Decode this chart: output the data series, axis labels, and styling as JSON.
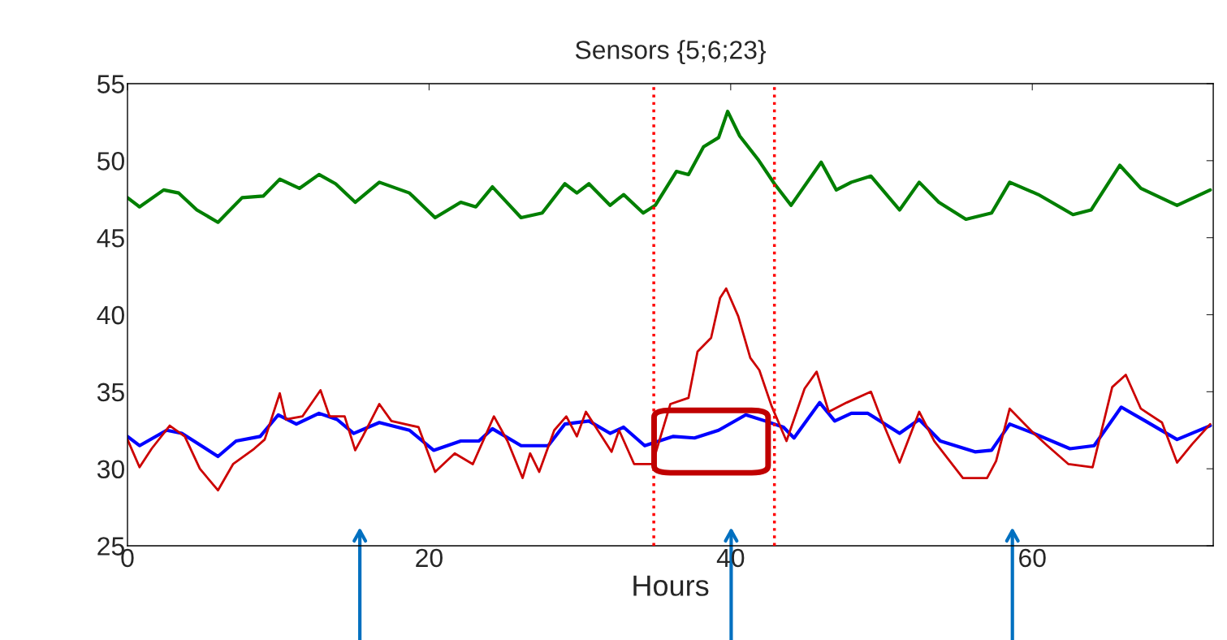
{
  "chart_data": {
    "type": "line",
    "title": "Sensors {5;6;23}",
    "xlabel": "Hours",
    "xlim": [
      0,
      72
    ],
    "xticks": [
      0,
      20,
      40,
      60
    ],
    "ylim": [
      25,
      55
    ],
    "yticks": [
      25,
      30,
      35,
      40,
      45,
      50,
      55
    ],
    "grid": false,
    "legend": false,
    "marker": "none",
    "line_style": "solid",
    "ref_lines": [
      {
        "axis": "x",
        "value": 34.9,
        "color": "#ff0000",
        "line_style": "dotted"
      },
      {
        "axis": "x",
        "value": 42.9,
        "color": "#ff0000",
        "line_style": "dotted"
      }
    ],
    "series": [
      {
        "color": "#007f00",
        "x": [
          0,
          0.8,
          2.4,
          3.4,
          4.6,
          6.0,
          7.6,
          9.0,
          10.1,
          11.4,
          12.7,
          13.8,
          15.1,
          16.7,
          18.7,
          20.4,
          22.1,
          23.1,
          24.2,
          26.1,
          27.5,
          29.0,
          29.8,
          30.6,
          32.0,
          32.9,
          34.2,
          35.0,
          36.4,
          37.2,
          38.2,
          39.2,
          39.8,
          40.6,
          41.8,
          42.9,
          44.0,
          46.0,
          47.0,
          48.0,
          49.3,
          51.2,
          52.5,
          53.8,
          55.6,
          57.3,
          58.5,
          60.4,
          62.7,
          63.9,
          65.8,
          67.2,
          69.6,
          71.8
        ],
        "values": [
          47.6,
          47.0,
          48.1,
          47.9,
          46.8,
          46.0,
          47.6,
          47.7,
          48.8,
          48.2,
          49.1,
          48.5,
          47.3,
          48.6,
          47.9,
          46.3,
          47.3,
          47.0,
          48.3,
          46.3,
          46.6,
          48.5,
          47.9,
          48.5,
          47.1,
          47.8,
          46.6,
          47.1,
          49.3,
          49.1,
          50.9,
          51.5,
          53.2,
          51.6,
          50.1,
          48.5,
          47.1,
          49.9,
          48.1,
          48.6,
          49.0,
          46.8,
          48.6,
          47.3,
          46.2,
          46.6,
          48.6,
          47.8,
          46.5,
          46.8,
          49.7,
          48.2,
          47.1,
          48.1
        ]
      },
      {
        "color": "#0000ff",
        "x": [
          0,
          0.8,
          2.6,
          3.6,
          6.0,
          7.2,
          8.8,
          10.0,
          11.2,
          12.7,
          13.9,
          15.0,
          16.7,
          18.7,
          20.3,
          22.1,
          23.3,
          24.2,
          26.1,
          27.9,
          29.0,
          30.6,
          32.0,
          32.9,
          34.3,
          36.2,
          37.6,
          39.2,
          41.0,
          42.3,
          43.5,
          44.2,
          45.9,
          46.9,
          48.0,
          49.1,
          51.2,
          52.5,
          53.9,
          56.2,
          57.3,
          58.5,
          60.1,
          62.5,
          64.1,
          65.9,
          67.5,
          69.6,
          71.8
        ],
        "values": [
          32.1,
          31.5,
          32.5,
          32.3,
          30.8,
          31.8,
          32.1,
          33.5,
          32.9,
          33.6,
          33.2,
          32.3,
          33.0,
          32.5,
          31.2,
          31.8,
          31.8,
          32.6,
          31.5,
          31.5,
          32.9,
          33.1,
          32.3,
          32.7,
          31.5,
          32.1,
          32.0,
          32.5,
          33.5,
          33.1,
          32.7,
          32.0,
          34.3,
          33.1,
          33.6,
          33.6,
          32.3,
          33.2,
          31.8,
          31.1,
          31.2,
          32.9,
          32.3,
          31.3,
          31.5,
          34.0,
          33.1,
          31.9,
          32.8
        ]
      },
      {
        "color": "#cc0000",
        "x": [
          0,
          0.8,
          1.6,
          2.8,
          3.8,
          4.8,
          6.0,
          7.0,
          8.4,
          9.1,
          10.1,
          10.5,
          11.6,
          12.8,
          13.4,
          14.4,
          15.1,
          15.6,
          16.7,
          17.5,
          19.3,
          20.4,
          21.7,
          22.9,
          24.3,
          25.2,
          26.2,
          26.7,
          27.3,
          28.3,
          29.1,
          29.8,
          30.4,
          32.1,
          32.6,
          33.6,
          34.8,
          36.0,
          37.2,
          37.8,
          38.7,
          39.3,
          39.7,
          40.5,
          41.3,
          41.9,
          42.7,
          43.7,
          44.9,
          45.7,
          46.5,
          47.7,
          49.3,
          50.0,
          51.2,
          52.5,
          53.5,
          55.4,
          57.0,
          57.6,
          58.5,
          60.1,
          61.0,
          62.4,
          64.0,
          65.3,
          66.2,
          67.2,
          68.6,
          69.6,
          70.6,
          71.8
        ],
        "values": [
          31.9,
          30.1,
          31.3,
          32.8,
          32.1,
          30.0,
          28.6,
          30.3,
          31.3,
          31.9,
          34.9,
          33.2,
          33.4,
          35.1,
          33.4,
          33.4,
          31.2,
          32.1,
          34.2,
          33.1,
          32.7,
          29.8,
          31.0,
          30.3,
          33.4,
          31.8,
          29.4,
          31.0,
          29.8,
          32.5,
          33.4,
          32.1,
          33.7,
          31.1,
          32.5,
          30.3,
          30.3,
          34.2,
          34.6,
          37.6,
          38.5,
          41.1,
          41.7,
          39.9,
          37.2,
          36.4,
          34.1,
          31.8,
          35.2,
          36.3,
          33.7,
          34.3,
          35.0,
          33.2,
          30.4,
          33.7,
          31.8,
          29.4,
          29.4,
          30.5,
          33.9,
          32.3,
          31.5,
          30.3,
          30.1,
          35.3,
          36.1,
          33.9,
          33.0,
          30.4,
          31.6,
          32.9
        ]
      }
    ]
  }
}
